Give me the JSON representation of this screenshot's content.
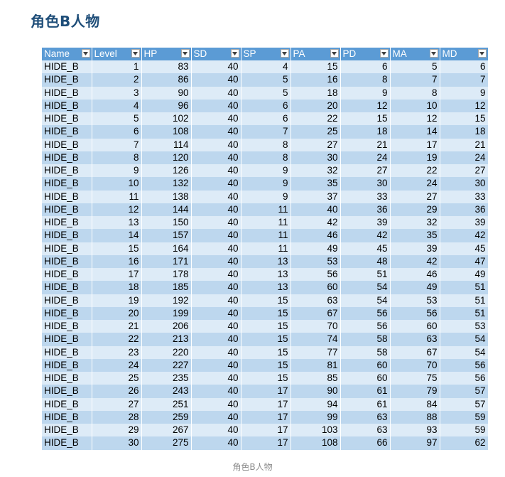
{
  "heading": "角色B人物",
  "caption": "角色B人物",
  "table": {
    "columns": [
      "Name",
      "Level",
      "HP",
      "SD",
      "SP",
      "PA",
      "PD",
      "MA",
      "MD"
    ],
    "rows": [
      [
        "HIDE_B",
        "1",
        "83",
        "40",
        "4",
        "15",
        "6",
        "5",
        "6"
      ],
      [
        "HIDE_B",
        "2",
        "86",
        "40",
        "5",
        "16",
        "8",
        "7",
        "7"
      ],
      [
        "HIDE_B",
        "3",
        "90",
        "40",
        "5",
        "18",
        "9",
        "8",
        "9"
      ],
      [
        "HIDE_B",
        "4",
        "96",
        "40",
        "6",
        "20",
        "12",
        "10",
        "12"
      ],
      [
        "HIDE_B",
        "5",
        "102",
        "40",
        "6",
        "22",
        "15",
        "12",
        "15"
      ],
      [
        "HIDE_B",
        "6",
        "108",
        "40",
        "7",
        "25",
        "18",
        "14",
        "18"
      ],
      [
        "HIDE_B",
        "7",
        "114",
        "40",
        "8",
        "27",
        "21",
        "17",
        "21"
      ],
      [
        "HIDE_B",
        "8",
        "120",
        "40",
        "8",
        "30",
        "24",
        "19",
        "24"
      ],
      [
        "HIDE_B",
        "9",
        "126",
        "40",
        "9",
        "32",
        "27",
        "22",
        "27"
      ],
      [
        "HIDE_B",
        "10",
        "132",
        "40",
        "9",
        "35",
        "30",
        "24",
        "30"
      ],
      [
        "HIDE_B",
        "11",
        "138",
        "40",
        "9",
        "37",
        "33",
        "27",
        "33"
      ],
      [
        "HIDE_B",
        "12",
        "144",
        "40",
        "11",
        "40",
        "36",
        "29",
        "36"
      ],
      [
        "HIDE_B",
        "13",
        "150",
        "40",
        "11",
        "42",
        "39",
        "32",
        "39"
      ],
      [
        "HIDE_B",
        "14",
        "157",
        "40",
        "11",
        "46",
        "42",
        "35",
        "42"
      ],
      [
        "HIDE_B",
        "15",
        "164",
        "40",
        "11",
        "49",
        "45",
        "39",
        "45"
      ],
      [
        "HIDE_B",
        "16",
        "171",
        "40",
        "13",
        "53",
        "48",
        "42",
        "47"
      ],
      [
        "HIDE_B",
        "17",
        "178",
        "40",
        "13",
        "56",
        "51",
        "46",
        "49"
      ],
      [
        "HIDE_B",
        "18",
        "185",
        "40",
        "13",
        "60",
        "54",
        "49",
        "51"
      ],
      [
        "HIDE_B",
        "19",
        "192",
        "40",
        "15",
        "63",
        "54",
        "53",
        "51"
      ],
      [
        "HIDE_B",
        "20",
        "199",
        "40",
        "15",
        "67",
        "56",
        "56",
        "51"
      ],
      [
        "HIDE_B",
        "21",
        "206",
        "40",
        "15",
        "70",
        "56",
        "60",
        "53"
      ],
      [
        "HIDE_B",
        "22",
        "213",
        "40",
        "15",
        "74",
        "58",
        "63",
        "54"
      ],
      [
        "HIDE_B",
        "23",
        "220",
        "40",
        "15",
        "77",
        "58",
        "67",
        "54"
      ],
      [
        "HIDE_B",
        "24",
        "227",
        "40",
        "15",
        "81",
        "60",
        "70",
        "56"
      ],
      [
        "HIDE_B",
        "25",
        "235",
        "40",
        "15",
        "85",
        "60",
        "75",
        "56"
      ],
      [
        "HIDE_B",
        "26",
        "243",
        "40",
        "17",
        "90",
        "61",
        "79",
        "57"
      ],
      [
        "HIDE_B",
        "27",
        "251",
        "40",
        "17",
        "94",
        "61",
        "84",
        "57"
      ],
      [
        "HIDE_B",
        "28",
        "259",
        "40",
        "17",
        "99",
        "63",
        "88",
        "59"
      ],
      [
        "HIDE_B",
        "29",
        "267",
        "40",
        "17",
        "103",
        "63",
        "93",
        "59"
      ],
      [
        "HIDE_B",
        "30",
        "275",
        "40",
        "17",
        "108",
        "66",
        "97",
        "62"
      ]
    ]
  },
  "colors": {
    "heading": "#1f4e79",
    "header_fill": "#5b9bd5",
    "band_light": "#ddebf7",
    "band_dark": "#bdd7ee"
  },
  "icons": {
    "filter": "filter-dropdown-icon"
  }
}
